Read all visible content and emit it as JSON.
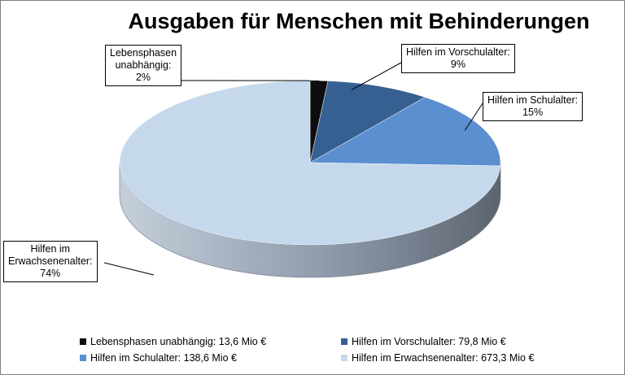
{
  "chart_data": {
    "type": "pie",
    "title": "Ausgaben für Menschen mit Behinderungen",
    "unit": "Mio €",
    "series": [
      {
        "name": "Lebensphasen unabhängig",
        "value": 13.6,
        "percent_label": "2%",
        "color": "#0d0d0d",
        "label_lines": [
          "Lebensphasen",
          "unabhängig:",
          "2%"
        ],
        "legend": "Lebensphasen unabhängig: 13,6 Mio €"
      },
      {
        "name": "Hilfen im Vorschulalter",
        "value": 79.8,
        "percent_label": "9%",
        "color": "#376092",
        "label_lines": [
          "Hilfen im Vorschulalter:",
          "9%"
        ],
        "legend": "Hilfen im Vorschulalter: 79,8 Mio €"
      },
      {
        "name": "Hilfen im Schulalter",
        "value": 138.6,
        "percent_label": "15%",
        "color": "#5b8fd0",
        "label_lines": [
          "Hilfen im Schulalter:",
          "15%"
        ],
        "legend": "Hilfen im Schulalter: 138,6 Mio €"
      },
      {
        "name": "Hilfen im Erwachsenenalter",
        "value": 673.3,
        "percent_label": "74%",
        "color": "#c6d9ec",
        "label_lines": [
          "Hilfen im",
          "Erwachsenenalter:",
          "74%"
        ],
        "legend": "Hilfen im Erwachsenenalter: 673,3 Mio €"
      }
    ],
    "style": "3d-pie",
    "legend_position": "bottom"
  }
}
